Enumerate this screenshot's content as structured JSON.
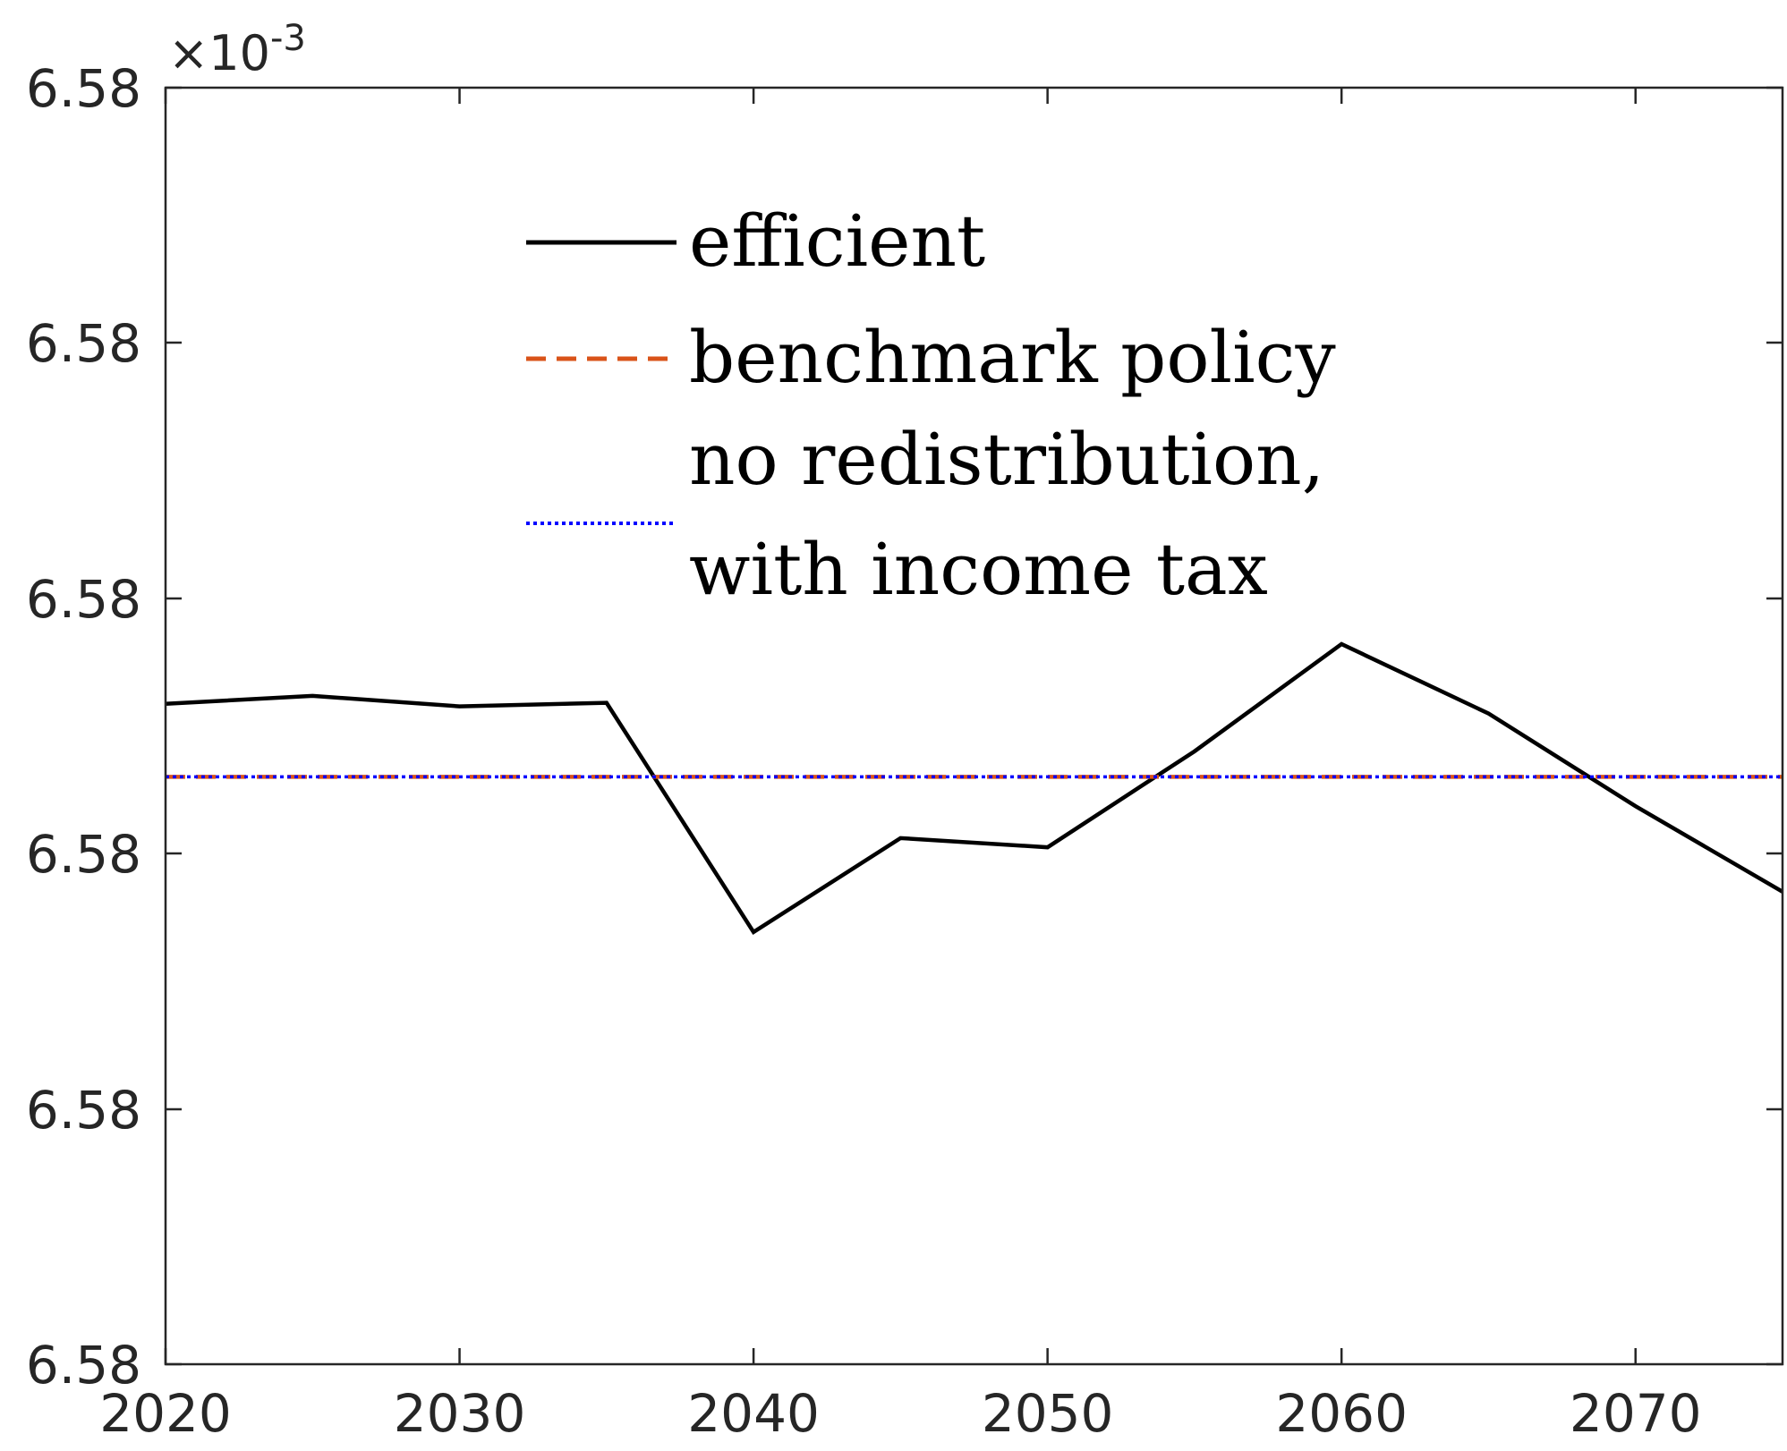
{
  "chart_data": {
    "type": "line",
    "title": "",
    "xlabel": "",
    "ylabel": "",
    "xlim": [
      2020,
      2075
    ],
    "y_exponent_label": "×10",
    "y_exponent_power": "-3",
    "x_ticks": [
      2020,
      2030,
      2040,
      2050,
      2060,
      2070
    ],
    "x_tick_labels": [
      "2020",
      "2030",
      "2040",
      "2050",
      "2060",
      "2070"
    ],
    "y_tick_labels": [
      "6.58",
      "6.58",
      "6.58",
      "6.58",
      "6.58",
      "6.58"
    ],
    "grid": false,
    "legend_position": "upper-center",
    "series": [
      {
        "name": "efficient",
        "color": "#000000",
        "style": "solid",
        "x": [
          2020,
          2025,
          2030,
          2035,
          2040,
          2045,
          2050,
          2055,
          2060,
          2065,
          2070,
          2075
        ],
        "y": [
          0.586,
          0.617,
          0.576,
          0.59,
          -0.308,
          0.06,
          0.024,
          0.4,
          0.82,
          0.548,
          0.185,
          -0.15
        ]
      },
      {
        "name": "benchmark policy",
        "color": "#D95319",
        "style": "dashed",
        "x": [
          2020,
          2075
        ],
        "y": [
          0.3,
          0.3
        ]
      },
      {
        "name": "no redistribution, with income tax",
        "legend_lines": [
          "no redistribution,",
          "with income tax"
        ],
        "color": "#0000FF",
        "style": "dotted",
        "x": [
          2020,
          2075
        ],
        "y": [
          0.3,
          0.3
        ]
      }
    ]
  }
}
